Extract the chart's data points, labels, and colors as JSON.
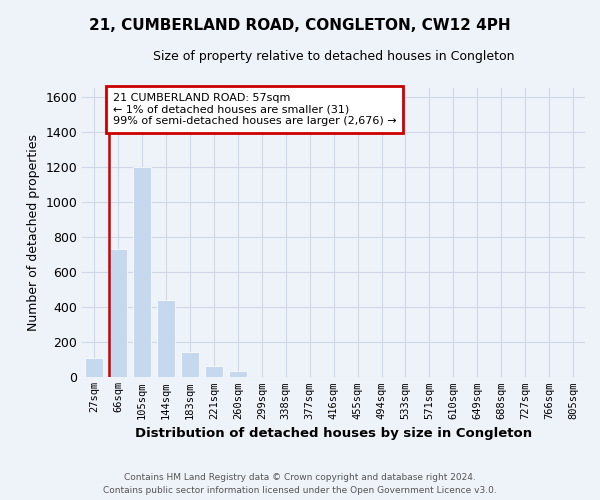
{
  "title": "21, CUMBERLAND ROAD, CONGLETON, CW12 4PH",
  "subtitle": "Size of property relative to detached houses in Congleton",
  "xlabel": "Distribution of detached houses by size in Congleton",
  "ylabel": "Number of detached properties",
  "bar_labels": [
    "27sqm",
    "66sqm",
    "105sqm",
    "144sqm",
    "183sqm",
    "221sqm",
    "260sqm",
    "299sqm",
    "338sqm",
    "377sqm",
    "416sqm",
    "455sqm",
    "494sqm",
    "533sqm",
    "571sqm",
    "610sqm",
    "649sqm",
    "688sqm",
    "727sqm",
    "766sqm",
    "805sqm"
  ],
  "bar_values": [
    110,
    730,
    1200,
    440,
    145,
    62,
    35,
    0,
    0,
    0,
    0,
    0,
    0,
    0,
    0,
    0,
    0,
    0,
    0,
    0,
    0
  ],
  "bar_color": "#c5d8ed",
  "highlight_color": "#cc0000",
  "property_line_index": 1,
  "annotation_title": "21 CUMBERLAND ROAD: 57sqm",
  "annotation_line1": "← 1% of detached houses are smaller (31)",
  "annotation_line2": "99% of semi-detached houses are larger (2,676) →",
  "annotation_box_color": "#ffffff",
  "annotation_box_edgecolor": "#cc0000",
  "ylim": [
    0,
    1650
  ],
  "yticks": [
    0,
    200,
    400,
    600,
    800,
    1000,
    1200,
    1400,
    1600
  ],
  "grid_color": "#d0d8e8",
  "background_color": "#eef2f9",
  "footer_line1": "Contains HM Land Registry data © Crown copyright and database right 2024.",
  "footer_line2": "Contains public sector information licensed under the Open Government Licence v3.0."
}
